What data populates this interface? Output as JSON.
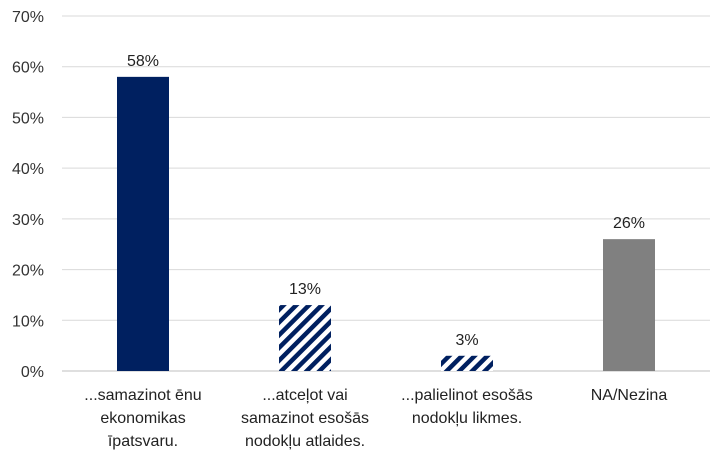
{
  "chart_data": {
    "type": "bar",
    "title": "",
    "xlabel": "",
    "ylabel": "",
    "ylim": [
      0,
      70
    ],
    "yticks": [
      0,
      10,
      20,
      30,
      40,
      50,
      60,
      70
    ],
    "ytick_labels": [
      "0%",
      "10%",
      "20%",
      "30%",
      "40%",
      "50%",
      "60%",
      "70%"
    ],
    "grid": true,
    "legend": "none",
    "categories": [
      "...samazinot ēnu\nekonomikas\nīpatsvaru.",
      "...atceļot vai\nsamazinot esošās\nnodokļu atlaides.",
      "...palielinot esošās\nnodokļu likmes.",
      "NA/Nezina"
    ],
    "values": [
      58,
      13,
      3,
      26
    ],
    "data_labels": [
      "58%",
      "13%",
      "3%",
      "26%"
    ],
    "bar_styles": [
      "solid",
      "hatched",
      "hatched",
      "solid"
    ],
    "bar_colors": [
      "#002060",
      "#002060",
      "#002060",
      "#808080"
    ],
    "gridline_color": "#d9d9d9",
    "axis_color": "#bfbfbf"
  }
}
